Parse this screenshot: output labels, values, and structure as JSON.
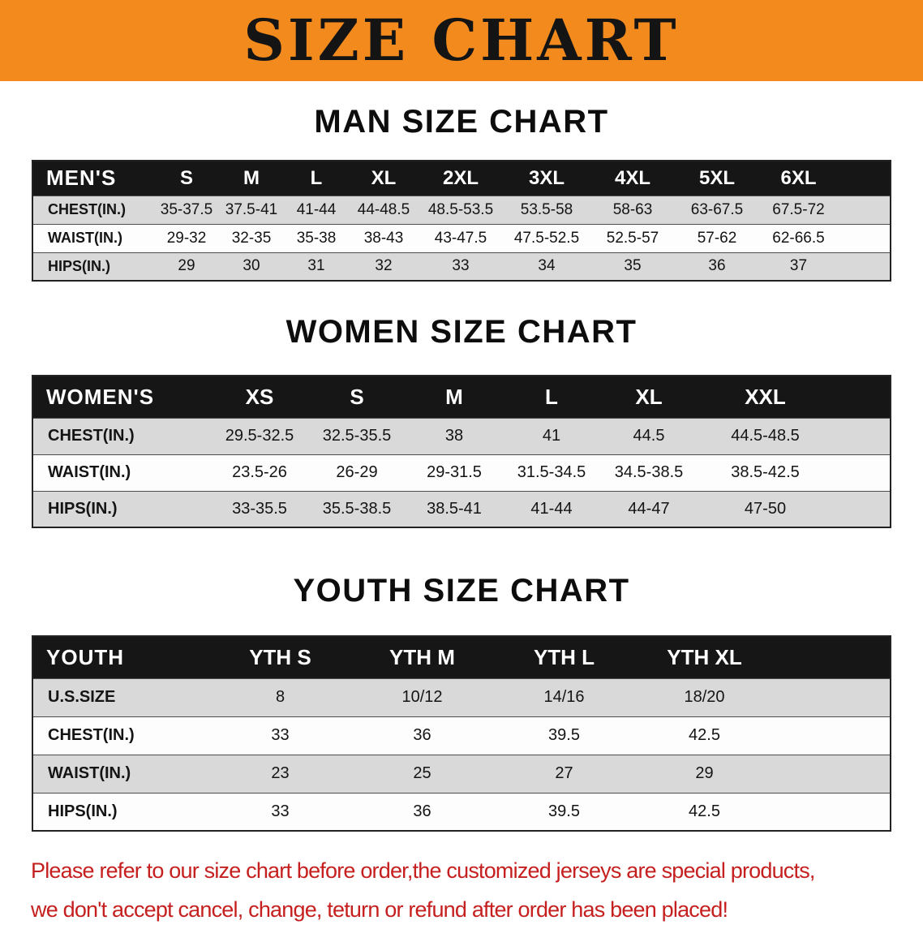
{
  "banner": {
    "title": "SIZE CHART",
    "bg_color": "#f28a1e"
  },
  "sections": [
    {
      "id": "men",
      "heading": "MAN SIZE CHART",
      "table": {
        "header": [
          "MEN'S",
          "S",
          "M",
          "L",
          "XL",
          "2XL",
          "3XL",
          "4XL",
          "5XL",
          "6XL"
        ],
        "rows": [
          [
            "CHEST(IN.)",
            "35-37.5",
            "37.5-41",
            "41-44",
            "44-48.5",
            "48.5-53.5",
            "53.5-58",
            "58-63",
            "63-67.5",
            "67.5-72"
          ],
          [
            "WAIST(IN.)",
            "29-32",
            "32-35",
            "35-38",
            "38-43",
            "43-47.5",
            "47.5-52.5",
            "52.5-57",
            "57-62",
            "62-66.5"
          ],
          [
            "HIPS(IN.)",
            "29",
            "30",
            "31",
            "32",
            "33",
            "34",
            "35",
            "36",
            "37"
          ]
        ]
      }
    },
    {
      "id": "women",
      "heading": "WOMEN SIZE CHART",
      "table": {
        "header": [
          "WOMEN'S",
          "XS",
          "S",
          "M",
          "L",
          "XL",
          "XXL"
        ],
        "rows": [
          [
            "CHEST(IN.)",
            "29.5-32.5",
            "32.5-35.5",
            "38",
            "41",
            "44.5",
            "44.5-48.5"
          ],
          [
            "WAIST(IN.)",
            "23.5-26",
            "26-29",
            "29-31.5",
            "31.5-34.5",
            "34.5-38.5",
            "38.5-42.5"
          ],
          [
            "HIPS(IN.)",
            "33-35.5",
            "35.5-38.5",
            "38.5-41",
            "41-44",
            "44-47",
            "47-50"
          ]
        ]
      }
    },
    {
      "id": "youth",
      "heading": "YOUTH SIZE CHART",
      "table": {
        "header": [
          "YOUTH",
          "YTH S",
          "YTH M",
          "YTH L",
          "YTH XL"
        ],
        "rows": [
          [
            "U.S.SIZE",
            "8",
            "10/12",
            "14/16",
            "18/20"
          ],
          [
            "CHEST(IN.)",
            "33",
            "36",
            "39.5",
            "42.5"
          ],
          [
            "WAIST(IN.)",
            "23",
            "25",
            "27",
            "29"
          ],
          [
            "HIPS(IN.)",
            "33",
            "36",
            "39.5",
            "42.5"
          ]
        ]
      }
    }
  ],
  "disclaimer": {
    "lines": [
      "Please refer to our size chart before order,the customized jerseys are special products,",
      "we don't accept cancel, change, teturn or refund after order has been placed!"
    ],
    "color": "#c5201f"
  }
}
